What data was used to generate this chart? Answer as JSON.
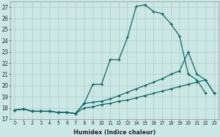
{
  "xlabel": "Humidex (Indice chaleur)",
  "bg_color": "#cce8e5",
  "grid_color": "#b8d8d5",
  "line_color": "#006060",
  "xlim": [
    -0.5,
    23.5
  ],
  "ylim": [
    17,
    27.5
  ],
  "xticks": [
    0,
    1,
    2,
    3,
    4,
    5,
    6,
    7,
    8,
    9,
    10,
    11,
    12,
    13,
    14,
    15,
    16,
    17,
    18,
    19,
    20,
    21,
    22,
    23
  ],
  "yticks": [
    17,
    18,
    19,
    20,
    21,
    22,
    23,
    24,
    25,
    26,
    27
  ],
  "line1_x": [
    0,
    1,
    2,
    3,
    4,
    5,
    6,
    7,
    8,
    9,
    10,
    11,
    12,
    13,
    14,
    15,
    16,
    17,
    18,
    19,
    20,
    21,
    22
  ],
  "line1_y": [
    17.8,
    17.9,
    17.7,
    17.7,
    17.7,
    17.6,
    17.6,
    17.5,
    18.4,
    20.1,
    20.1,
    22.3,
    22.3,
    24.3,
    27.05,
    27.2,
    26.6,
    26.4,
    25.5,
    24.4,
    21.0,
    20.5,
    19.3
  ],
  "line2_x": [
    0,
    1,
    2,
    3,
    4,
    5,
    6,
    7,
    8,
    9,
    10,
    11,
    12,
    13,
    14,
    15,
    16,
    17,
    18,
    19,
    20,
    21,
    22,
    23
  ],
  "line2_y": [
    17.8,
    17.9,
    17.7,
    17.7,
    17.7,
    17.6,
    17.6,
    17.5,
    18.4,
    18.5,
    18.6,
    18.8,
    19.1,
    19.4,
    19.7,
    20.0,
    20.3,
    20.6,
    21.0,
    21.3,
    23.0,
    21.0,
    20.5,
    19.3
  ],
  "line3_x": [
    0,
    1,
    2,
    3,
    4,
    5,
    6,
    7,
    8,
    9,
    10,
    11,
    12,
    13,
    14,
    15,
    16,
    17,
    18,
    19,
    20,
    21,
    22,
    23
  ],
  "line3_y": [
    17.8,
    17.9,
    17.7,
    17.7,
    17.7,
    17.6,
    17.6,
    17.5,
    18.0,
    18.1,
    18.3,
    18.4,
    18.6,
    18.7,
    18.9,
    19.1,
    19.3,
    19.5,
    19.7,
    19.9,
    20.1,
    20.3,
    20.5,
    19.3
  ]
}
